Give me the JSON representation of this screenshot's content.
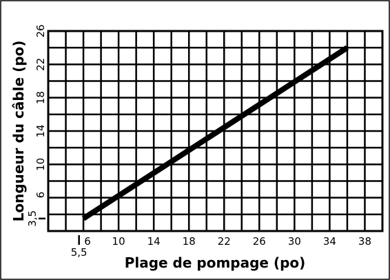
{
  "chart_data": {
    "type": "line",
    "x_label": "Plage de pompage (po)",
    "y_label": "Longueur du câble (po)",
    "series": [
      {
        "x": [
          6,
          36
        ],
        "values": [
          3.5,
          24
        ],
        "color": "#000000"
      }
    ],
    "xlim": [
      2,
      40
    ],
    "ylim": [
      2,
      26
    ],
    "xticks": [
      {
        "value": 5.5,
        "label": "5,5"
      },
      6,
      10,
      14,
      18,
      22,
      26,
      30,
      34,
      38
    ],
    "yticks": [
      {
        "value": 3.5,
        "label": "3,5"
      },
      6,
      10,
      14,
      18,
      22,
      26
    ],
    "xgrid": [
      2,
      4,
      6,
      8,
      10,
      12,
      14,
      16,
      18,
      20,
      22,
      24,
      26,
      28,
      30,
      32,
      34,
      36,
      38,
      40
    ],
    "ygrid": [
      2,
      4,
      6,
      8,
      10,
      12,
      14,
      16,
      18,
      20,
      22,
      24,
      26
    ],
    "grid": true
  }
}
